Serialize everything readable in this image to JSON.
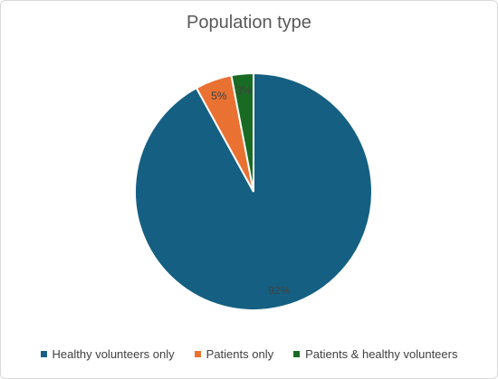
{
  "chart_data": {
    "type": "pie",
    "title": "Population type",
    "categories": [
      "Healthy volunteers only",
      "Patients only",
      "Patients & healthy volunteers"
    ],
    "values": [
      92,
      5,
      3
    ],
    "labels": [
      "92%",
      "5%",
      "3%"
    ],
    "colors": [
      "#156082",
      "#e97132",
      "#196b24"
    ],
    "legend": "bottom"
  }
}
